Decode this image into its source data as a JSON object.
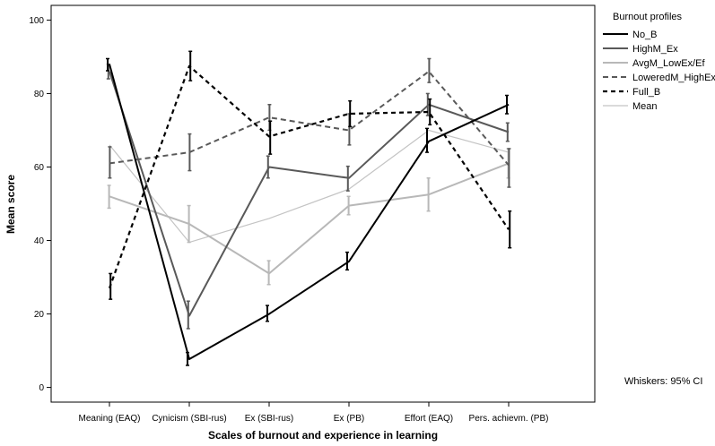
{
  "chart_data": {
    "type": "line",
    "xlabel": "Scales of burnout and experience in learning",
    "ylabel": "Mean score",
    "categories": [
      "Meaning (EAQ)",
      "Cynicism (SBI-rus)",
      "Ex (SBI-rus)",
      "Ex (PB)",
      "Effort (EAQ)",
      "Pers. achievm. (PB)"
    ],
    "y_ticks": [
      0,
      20,
      40,
      60,
      80,
      100
    ],
    "ylim": [
      -4,
      104
    ],
    "grid": false,
    "legend_title": "Burnout profiles",
    "legend_position": "right",
    "note": "Whiskers: 95% CI",
    "series": [
      {
        "name": "No_B",
        "color": "#000000",
        "dash": "solid",
        "width": 2,
        "values": [
          88.0,
          7.7,
          20.0,
          34.3,
          67.0,
          77.0
        ],
        "ci_low": [
          86.2,
          6.0,
          18.0,
          32.0,
          64.0,
          74.5
        ],
        "ci_high": [
          89.5,
          9.5,
          22.3,
          36.8,
          70.5,
          79.5
        ]
      },
      {
        "name": "HighM_Ex",
        "color": "#595959",
        "dash": "solid",
        "width": 2,
        "values": [
          86.0,
          19.5,
          60.0,
          57.0,
          77.0,
          69.5
        ],
        "ci_low": [
          84.0,
          16.0,
          57.0,
          53.5,
          74.0,
          67.0
        ],
        "ci_high": [
          88.0,
          23.5,
          63.0,
          60.2,
          80.0,
          72.0
        ]
      },
      {
        "name": "AvgM_LowEx/Ef",
        "color": "#b8b8b8",
        "dash": "solid",
        "width": 2,
        "values": [
          52.0,
          44.5,
          31.0,
          49.5,
          52.5,
          61.0
        ],
        "ci_low": [
          48.8,
          39.5,
          28.0,
          47.0,
          48.0,
          57.0
        ],
        "ci_high": [
          55.0,
          49.5,
          34.5,
          52.0,
          57.0,
          65.0
        ]
      },
      {
        "name": "LoweredM_HighEx/Ef",
        "color": "#595959",
        "dash": "6,4",
        "width": 2,
        "values": [
          61.0,
          64.0,
          73.5,
          70.0,
          86.0,
          60.5
        ],
        "ci_low": [
          57.0,
          59.0,
          70.0,
          66.0,
          83.0,
          54.5
        ],
        "ci_high": [
          65.5,
          69.0,
          77.0,
          74.5,
          89.5,
          65.0
        ]
      },
      {
        "name": "Full_B",
        "color": "#000000",
        "dash": "5,4",
        "width": 2.2,
        "values": [
          27.0,
          87.5,
          68.3,
          74.5,
          75.0,
          43.0
        ],
        "ci_low": [
          24.0,
          83.5,
          63.5,
          71.0,
          71.5,
          38.0
        ],
        "ci_high": [
          31.0,
          91.5,
          72.5,
          78.0,
          78.5,
          48.0
        ]
      },
      {
        "name": "Mean",
        "color": "#c4c4c4",
        "dash": "solid",
        "width": 1.2,
        "values": [
          66.0,
          39.5,
          46.0,
          54.0,
          70.0,
          64.0
        ]
      }
    ]
  }
}
